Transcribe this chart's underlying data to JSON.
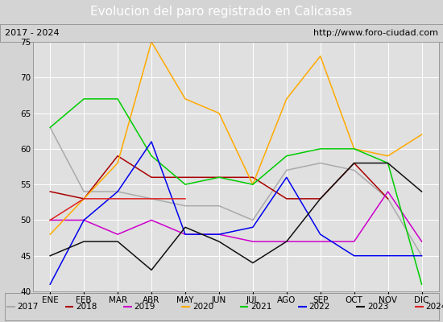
{
  "title": "Evolucion del paro registrado en Calicasas",
  "subtitle_left": "2017 - 2024",
  "subtitle_right": "http://www.foro-ciudad.com",
  "xlabel_months": [
    "ENE",
    "FEB",
    "MAR",
    "ABR",
    "MAY",
    "JUN",
    "JUL",
    "AGO",
    "SEP",
    "OCT",
    "NOV",
    "DIC"
  ],
  "ylim": [
    40,
    75
  ],
  "yticks": [
    40,
    45,
    50,
    55,
    60,
    65,
    70,
    75
  ],
  "series": {
    "2017": {
      "color": "#aaaaaa",
      "data": [
        63,
        54,
        54,
        53,
        52,
        52,
        50,
        57,
        58,
        57,
        53,
        45
      ]
    },
    "2018": {
      "color": "#aa0000",
      "data": [
        54,
        53,
        59,
        56,
        56,
        56,
        56,
        53,
        53,
        58,
        53,
        null
      ]
    },
    "2019": {
      "color": "#cc00cc",
      "data": [
        50,
        50,
        48,
        50,
        48,
        48,
        47,
        47,
        47,
        47,
        54,
        47
      ]
    },
    "2020": {
      "color": "#ffaa00",
      "data": [
        48,
        53,
        58,
        75,
        67,
        65,
        55,
        67,
        73,
        60,
        59,
        62
      ]
    },
    "2021": {
      "color": "#00cc00",
      "data": [
        63,
        67,
        67,
        59,
        55,
        56,
        55,
        59,
        60,
        60,
        58,
        41
      ]
    },
    "2022": {
      "color": "#0000ee",
      "data": [
        41,
        50,
        54,
        61,
        48,
        48,
        49,
        56,
        48,
        45,
        45,
        45
      ]
    },
    "2023": {
      "color": "#111111",
      "data": [
        45,
        47,
        47,
        43,
        49,
        47,
        44,
        47,
        53,
        58,
        58,
        54
      ]
    },
    "2024": {
      "color": "#dd2222",
      "data": [
        50,
        53,
        53,
        53,
        53,
        null,
        null,
        null,
        null,
        null,
        null,
        null
      ]
    }
  },
  "fig_width": 5.5,
  "fig_height": 4.0,
  "dpi": 100,
  "background_color": "#d4d4d4",
  "plot_bg_color": "#e0e0e0",
  "title_bg": "#4070c0",
  "title_color": "white",
  "title_fontsize": 11,
  "subtitle_bg": "#d4d4d4",
  "subtitle_fontsize": 8,
  "tick_fontsize": 7.5,
  "legend_fontsize": 7.5
}
